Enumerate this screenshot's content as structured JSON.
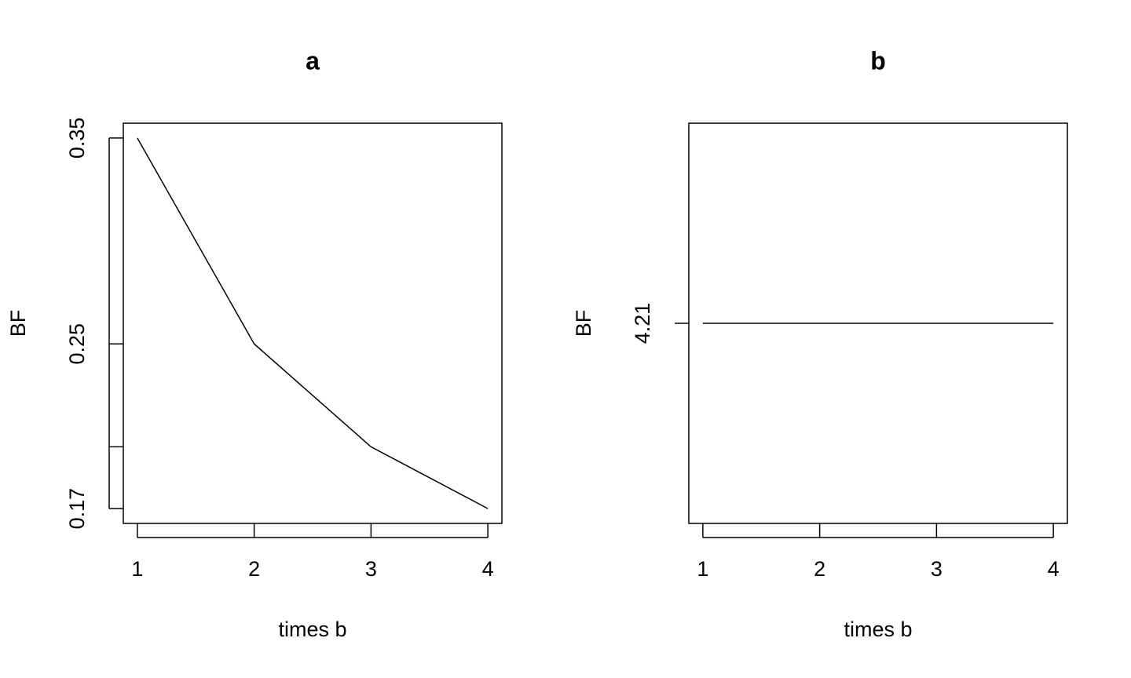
{
  "chart_data": [
    {
      "type": "line",
      "title": "a",
      "x_label": "times b",
      "y_label": "BF",
      "x": [
        1,
        2,
        3,
        4
      ],
      "values": [
        0.35,
        0.25,
        0.2,
        0.17
      ],
      "color": "#000000",
      "xlim": [
        0.88,
        4.12
      ],
      "xticks": [
        1,
        2,
        3,
        4
      ],
      "ylim": [
        0.1628,
        0.3572
      ],
      "yticks": [
        0.35,
        0.25,
        {
          "value": 0.2,
          "label": null
        },
        0.17
      ]
    },
    {
      "type": "line",
      "title": "b",
      "x_label": "times b",
      "y_label": "BF",
      "x": [
        1,
        2,
        3,
        4
      ],
      "values": [
        4.21,
        4.21,
        4.21,
        4.21
      ],
      "color": "#000000",
      "xlim": [
        0.88,
        4.12
      ],
      "xticks": [
        1,
        2,
        3,
        4
      ],
      "ylim": [
        4.0416,
        4.3784
      ],
      "yticks": [
        4.21
      ]
    }
  ]
}
